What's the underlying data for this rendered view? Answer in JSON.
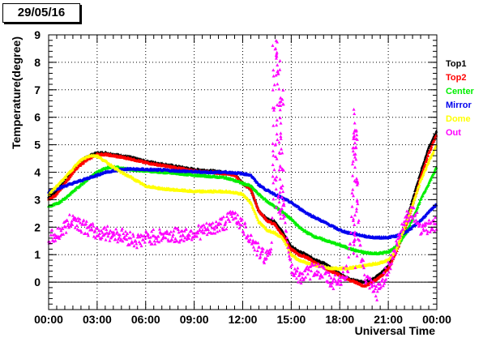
{
  "date_label": "29/05/16",
  "chart_data": {
    "type": "scatter",
    "title": "",
    "xlabel": "Universal Time",
    "ylabel": "Temperature(degree)",
    "xlim": [
      0,
      24
    ],
    "ylim": [
      -1,
      9
    ],
    "x_ticks": [
      0,
      3,
      6,
      9,
      12,
      15,
      18,
      21,
      24
    ],
    "x_tick_labels": [
      "00:00",
      "03:00",
      "06:00",
      "09:00",
      "12:00",
      "15:00",
      "18:00",
      "21:00",
      "00:00"
    ],
    "y_ticks": [
      0,
      1,
      2,
      3,
      4,
      5,
      6,
      7,
      8,
      9
    ],
    "y_tick_labels": [
      "0",
      "1",
      "2",
      "3",
      "4",
      "5",
      "6",
      "7",
      "8",
      "9"
    ],
    "grid": true,
    "legend_position": "right",
    "series": [
      {
        "name": "Top1",
        "color": "#000000",
        "x": [
          0.0,
          0.5,
          1.0,
          1.5,
          2.0,
          2.5,
          3.0,
          3.5,
          4.0,
          5.0,
          6.0,
          7.0,
          8.0,
          9.0,
          10.0,
          11.0,
          11.5,
          12.0,
          12.5,
          13.0,
          13.5,
          14.0,
          14.5,
          15.0,
          15.5,
          16.0,
          16.5,
          17.0,
          17.5,
          18.0,
          18.5,
          19.0,
          19.5,
          20.0,
          20.5,
          21.0,
          21.5,
          22.0,
          22.5,
          23.0,
          23.5,
          24.0
        ],
        "y": [
          3.1,
          3.3,
          3.7,
          4.1,
          4.4,
          4.6,
          4.7,
          4.7,
          4.65,
          4.55,
          4.4,
          4.3,
          4.2,
          4.1,
          4.05,
          4.0,
          3.95,
          3.6,
          3.4,
          2.6,
          2.3,
          2.2,
          1.8,
          1.3,
          1.1,
          1.0,
          0.8,
          0.7,
          0.5,
          0.3,
          0.15,
          0.05,
          0.0,
          0.1,
          0.3,
          0.6,
          1.2,
          2.0,
          3.0,
          4.0,
          4.9,
          5.5
        ]
      },
      {
        "name": "Top2",
        "color": "#ff0000",
        "x": [
          0.0,
          0.5,
          1.0,
          1.5,
          2.0,
          2.5,
          3.0,
          3.5,
          4.0,
          5.0,
          6.0,
          7.0,
          8.0,
          9.0,
          10.0,
          11.0,
          11.5,
          12.0,
          12.5,
          13.0,
          13.5,
          14.0,
          14.5,
          15.0,
          15.5,
          16.0,
          16.5,
          17.0,
          17.5,
          18.0,
          18.5,
          19.0,
          19.5,
          20.0,
          20.5,
          21.0,
          21.5,
          22.0,
          22.5,
          23.0,
          23.5,
          24.0
        ],
        "y": [
          3.0,
          3.2,
          3.6,
          4.0,
          4.3,
          4.5,
          4.65,
          4.65,
          4.6,
          4.5,
          4.35,
          4.25,
          4.15,
          4.05,
          4.0,
          3.95,
          3.9,
          3.6,
          3.4,
          2.6,
          2.25,
          2.1,
          1.7,
          1.2,
          1.0,
          0.9,
          0.7,
          0.55,
          0.4,
          0.25,
          0.1,
          0.0,
          -0.15,
          0.0,
          0.2,
          0.5,
          1.1,
          1.9,
          2.8,
          3.8,
          4.7,
          5.4
        ]
      },
      {
        "name": "Center",
        "color": "#00ee00",
        "x": [
          0.0,
          0.5,
          1.0,
          1.5,
          2.0,
          2.5,
          3.0,
          3.5,
          4.0,
          4.5,
          5.0,
          6.0,
          7.0,
          8.0,
          9.0,
          10.0,
          11.0,
          11.5,
          12.0,
          12.5,
          13.0,
          13.5,
          14.0,
          14.5,
          15.0,
          15.5,
          16.0,
          16.5,
          17.0,
          17.5,
          18.0,
          18.5,
          19.0,
          19.5,
          20.0,
          20.5,
          21.0,
          21.5,
          22.0,
          22.5,
          23.0,
          23.5,
          24.0
        ],
        "y": [
          2.75,
          2.85,
          3.05,
          3.3,
          3.55,
          3.8,
          4.0,
          4.15,
          4.2,
          4.15,
          4.1,
          4.05,
          4.0,
          3.95,
          3.9,
          3.85,
          3.8,
          3.7,
          3.6,
          3.5,
          3.2,
          2.95,
          2.75,
          2.55,
          2.3,
          2.0,
          1.8,
          1.65,
          1.55,
          1.45,
          1.35,
          1.25,
          1.15,
          1.08,
          1.05,
          1.05,
          1.1,
          1.3,
          1.7,
          2.3,
          3.0,
          3.6,
          4.2
        ]
      },
      {
        "name": "Mirror",
        "color": "#0000ee",
        "x": [
          0.0,
          0.5,
          1.0,
          1.5,
          2.0,
          2.5,
          3.0,
          3.5,
          4.0,
          4.5,
          5.0,
          6.0,
          7.0,
          8.0,
          9.0,
          10.0,
          11.0,
          11.5,
          12.0,
          12.5,
          13.0,
          13.5,
          14.0,
          14.5,
          15.0,
          15.5,
          16.0,
          16.5,
          17.0,
          17.5,
          18.0,
          18.5,
          19.0,
          19.5,
          20.0,
          20.5,
          21.0,
          21.5,
          22.0,
          22.5,
          23.0,
          23.5,
          24.0
        ],
        "y": [
          3.3,
          3.4,
          3.5,
          3.6,
          3.7,
          3.8,
          3.9,
          4.0,
          4.05,
          4.1,
          4.12,
          4.1,
          4.08,
          4.05,
          4.02,
          4.0,
          4.0,
          3.98,
          3.95,
          3.9,
          3.55,
          3.35,
          3.2,
          3.05,
          2.9,
          2.7,
          2.5,
          2.35,
          2.2,
          2.05,
          1.9,
          1.8,
          1.75,
          1.68,
          1.63,
          1.62,
          1.63,
          1.68,
          1.8,
          2.0,
          2.25,
          2.55,
          2.85
        ]
      },
      {
        "name": "Dome",
        "color": "#ffff00",
        "x": [
          0.0,
          0.5,
          1.0,
          1.5,
          2.0,
          2.5,
          3.0,
          3.5,
          4.0,
          4.5,
          5.0,
          6.0,
          7.0,
          8.0,
          9.0,
          10.0,
          11.0,
          11.5,
          12.0,
          12.5,
          13.0,
          13.5,
          14.0,
          14.5,
          15.0,
          15.5,
          16.0,
          16.5,
          17.0,
          17.5,
          18.0,
          18.5,
          19.0,
          19.5,
          20.0,
          20.5,
          21.0,
          21.5,
          22.0,
          22.5,
          23.0,
          23.5,
          24.0
        ],
        "y": [
          3.2,
          3.5,
          3.8,
          4.15,
          4.45,
          4.6,
          4.6,
          4.4,
          4.2,
          4.0,
          3.85,
          3.5,
          3.4,
          3.35,
          3.3,
          3.3,
          3.3,
          3.25,
          3.2,
          2.9,
          2.2,
          1.9,
          1.8,
          1.6,
          1.0,
          0.8,
          0.7,
          0.6,
          0.55,
          0.5,
          0.5,
          0.5,
          0.55,
          0.6,
          0.65,
          0.7,
          0.8,
          1.2,
          2.0,
          2.8,
          3.7,
          4.4,
          5.0
        ]
      },
      {
        "name": "Out",
        "color": "#ff00ff",
        "x": [
          0.0,
          0.5,
          1.0,
          1.5,
          2.0,
          2.5,
          3.0,
          3.5,
          4.0,
          4.5,
          5.0,
          5.5,
          6.0,
          7.0,
          8.0,
          9.0,
          10.0,
          11.0,
          11.5,
          12.0,
          12.5,
          13.0,
          13.5,
          13.8,
          14.0,
          14.2,
          14.4,
          14.6,
          15.0,
          15.5,
          16.0,
          16.5,
          17.0,
          17.5,
          18.0,
          18.5,
          18.7,
          18.9,
          19.1,
          19.3,
          19.6,
          20.0,
          20.3,
          20.6,
          21.0,
          21.5,
          22.0,
          22.5,
          23.0,
          23.5,
          24.0
        ],
        "y": [
          1.6,
          1.7,
          2.0,
          2.3,
          2.1,
          1.9,
          1.8,
          1.8,
          1.75,
          1.7,
          1.6,
          1.5,
          1.6,
          1.7,
          1.7,
          1.8,
          1.9,
          2.2,
          2.5,
          2.0,
          1.6,
          1.1,
          0.9,
          1.5,
          8.5,
          7.5,
          4.5,
          2.3,
          0.5,
          0.2,
          0.3,
          0.5,
          0.3,
          0.0,
          0.1,
          0.4,
          2.0,
          5.9,
          2.8,
          1.0,
          0.1,
          -0.2,
          -0.4,
          0.0,
          0.5,
          1.3,
          2.3,
          2.6,
          2.0,
          2.0,
          2.1
        ]
      }
    ]
  }
}
